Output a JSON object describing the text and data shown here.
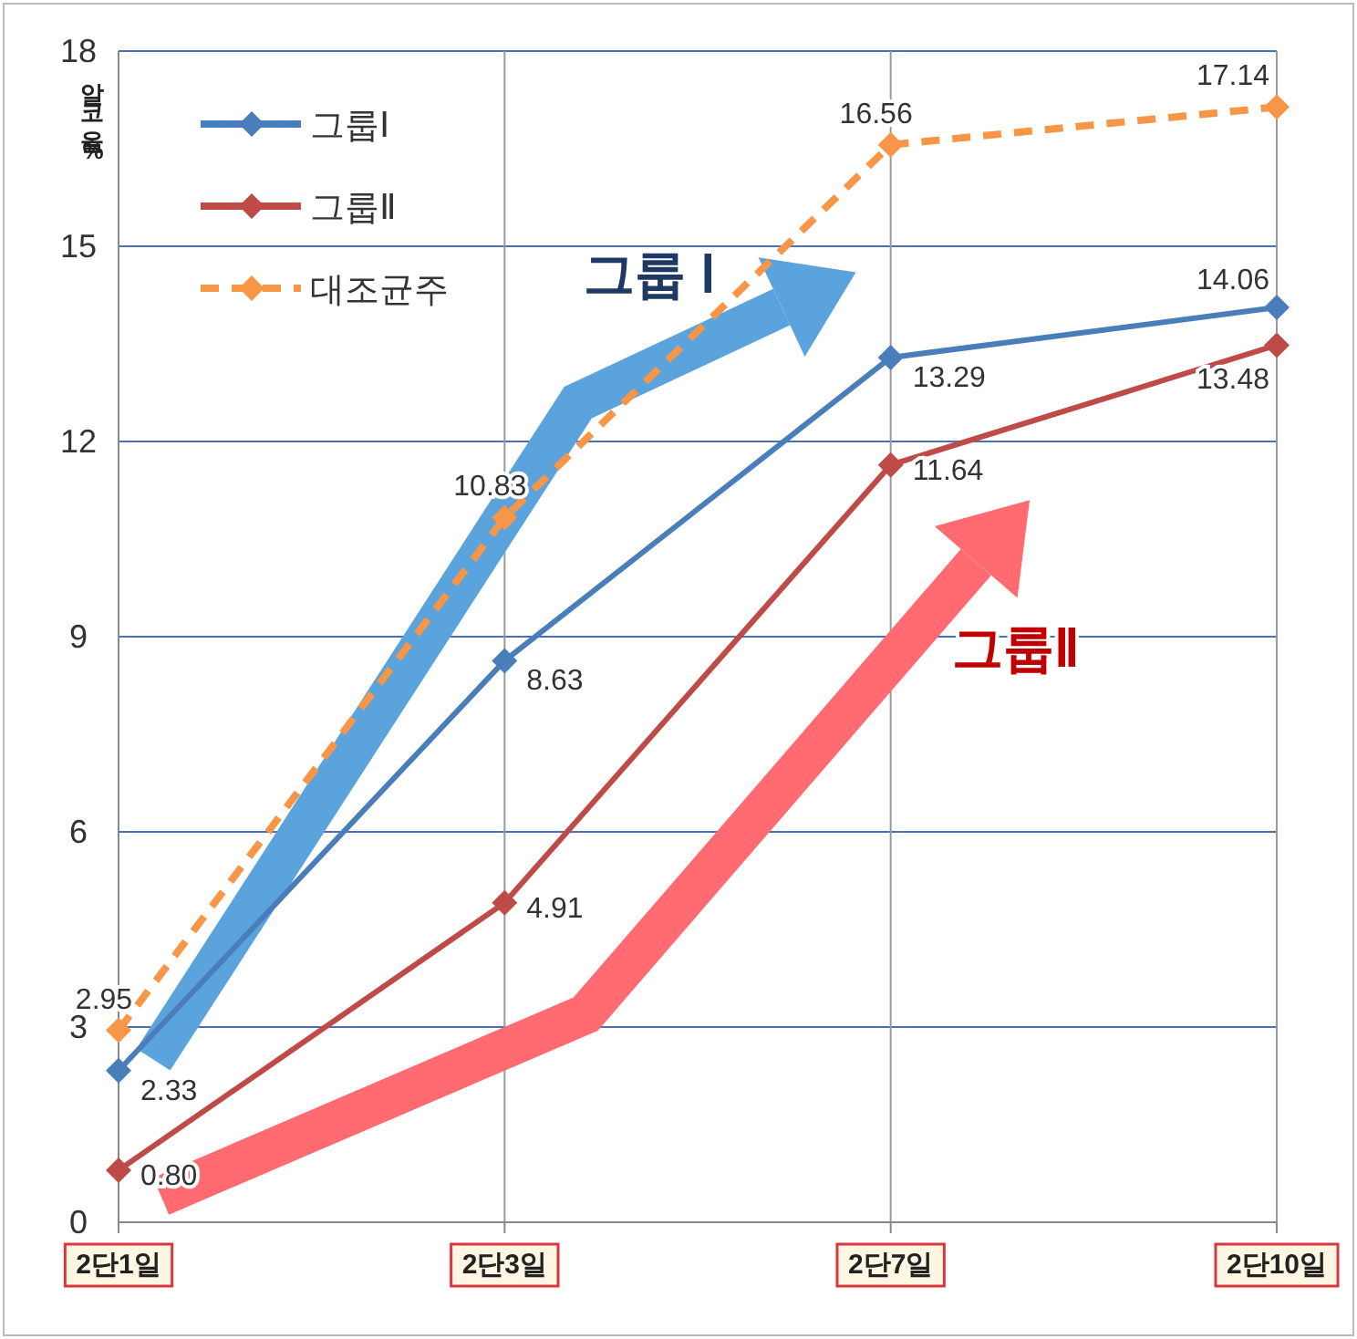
{
  "chart_data": {
    "type": "line",
    "ylabel": "알코올%",
    "categories": [
      "2단1일",
      "2단3일",
      "2단7일",
      "2단10일"
    ],
    "ylim": [
      0,
      18
    ],
    "yticks": [
      0,
      3,
      6,
      9,
      12,
      15,
      18
    ],
    "grid": true,
    "legend": "top left",
    "marker": "diamond",
    "series": [
      {
        "name": "그룹Ⅰ",
        "color": "#4a7ebb",
        "values": [
          2.33,
          8.63,
          13.29,
          14.06
        ],
        "value_labels": [
          "2.33",
          "8.63",
          "13.29",
          "14.06"
        ]
      },
      {
        "name": "그룹Ⅱ",
        "color": "#be4b48",
        "values": [
          0.8,
          4.91,
          11.64,
          13.48
        ],
        "value_labels": [
          "0.80",
          "4.91",
          "11.64",
          "13.48"
        ]
      },
      {
        "name": "대조균주",
        "color": "#f79646",
        "line_style": "dashed",
        "values": [
          2.95,
          10.83,
          16.56,
          17.14
        ],
        "value_labels": [
          "2.95",
          "10.83",
          "16.56",
          "17.14"
        ]
      }
    ],
    "annotations": [
      "그룹 Ⅰ",
      "그룹Ⅱ"
    ]
  }
}
